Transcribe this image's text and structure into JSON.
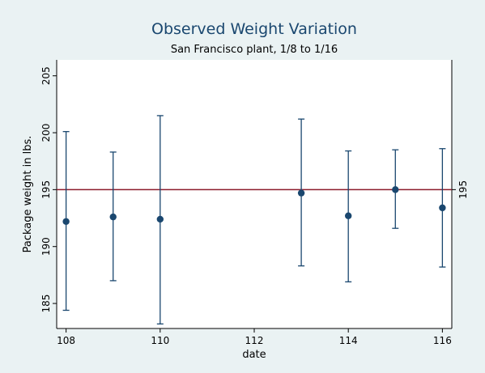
{
  "chart_data": {
    "type": "scatter",
    "title": "Observed Weight Variation",
    "subtitle": "San Francisco plant, 1/8 to 1/16",
    "xlabel": "date",
    "ylabel": "Package weight in lbs.",
    "xlim": [
      107.8,
      116.2
    ],
    "ylim": [
      182.8,
      206.4
    ],
    "x_ticks": [
      108,
      110,
      112,
      114,
      116
    ],
    "y_ticks": [
      185,
      190,
      195,
      200,
      205
    ],
    "reference_line": {
      "value": 195,
      "label": "195",
      "color": "#8b1a2b"
    },
    "marker_color": "#1a476f",
    "background_color": "#eaf2f3",
    "plot_background_color": "#ffffff",
    "points": [
      {
        "x": 108,
        "y": 192.2,
        "low": 184.4,
        "high": 200.1
      },
      {
        "x": 109,
        "y": 192.6,
        "low": 187.0,
        "high": 198.3
      },
      {
        "x": 110,
        "y": 192.4,
        "low": 183.2,
        "high": 201.5
      },
      {
        "x": 113,
        "y": 194.7,
        "low": 188.3,
        "high": 201.2
      },
      {
        "x": 114,
        "y": 192.7,
        "low": 186.9,
        "high": 198.4
      },
      {
        "x": 115,
        "y": 195.0,
        "low": 191.6,
        "high": 198.5
      },
      {
        "x": 116,
        "y": 193.4,
        "low": 188.2,
        "high": 198.6
      }
    ]
  }
}
